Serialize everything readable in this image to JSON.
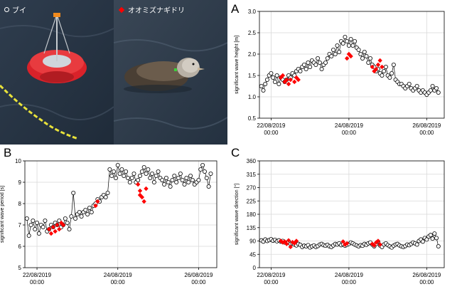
{
  "photos": {
    "buoy_label": "ブイ",
    "bird_label": "オオミズナギドリ",
    "colors": {
      "buoy_marker": "#ffffff",
      "bird_marker": "#ff0000"
    }
  },
  "panels": {
    "a": "A",
    "b": "B",
    "c": "C"
  },
  "chart_data": [
    {
      "type": "scatter",
      "panel": "A",
      "ylabel": "significant wave height [m]",
      "xlabel": "",
      "x_ticks": [
        "22/08/2019\n00:00",
        "24/08/2019\n00:00",
        "26/08/2019\n00:00"
      ],
      "x_tick_days": [
        0,
        2,
        4
      ],
      "xlim_days": [
        -0.3,
        4.45
      ],
      "ylim": [
        0.5,
        3.0
      ],
      "y_ticks": [
        "0.5",
        "1.0",
        "1.5",
        "2.0",
        "2.5",
        "3.0"
      ],
      "grid": true,
      "series": [
        {
          "name": "ブイ",
          "marker": "open-circle",
          "color": "#000000",
          "x": [
            -0.25,
            -0.2,
            -0.15,
            -0.1,
            -0.05,
            0,
            0.05,
            0.1,
            0.15,
            0.2,
            0.25,
            0.3,
            0.35,
            0.4,
            0.45,
            0.5,
            0.55,
            0.6,
            0.65,
            0.7,
            0.75,
            0.8,
            0.85,
            0.9,
            0.95,
            1,
            1.05,
            1.1,
            1.15,
            1.2,
            1.25,
            1.3,
            1.35,
            1.4,
            1.45,
            1.5,
            1.55,
            1.6,
            1.65,
            1.7,
            1.75,
            1.8,
            1.85,
            1.9,
            1.95,
            2,
            2.05,
            2.1,
            2.15,
            2.2,
            2.25,
            2.3,
            2.35,
            2.4,
            2.45,
            2.5,
            2.55,
            2.6,
            2.65,
            2.7,
            2.75,
            2.8,
            2.85,
            2.9,
            2.95,
            3,
            3.05,
            3.1,
            3.15,
            3.2,
            3.25,
            3.3,
            3.35,
            3.4,
            3.45,
            3.5,
            3.55,
            3.6,
            3.65,
            3.7,
            3.75,
            3.8,
            3.85,
            3.9,
            3.95,
            4,
            4.05,
            4.1,
            4.15,
            4.2,
            4.25,
            4.3
          ],
          "y": [
            1.25,
            1.15,
            1.3,
            1.4,
            1.5,
            1.55,
            1.45,
            1.35,
            1.5,
            1.3,
            1.45,
            1.4,
            1.35,
            1.4,
            1.5,
            1.45,
            1.55,
            1.5,
            1.6,
            1.65,
            1.6,
            1.7,
            1.75,
            1.65,
            1.8,
            1.7,
            1.85,
            1.8,
            1.75,
            1.9,
            1.8,
            1.65,
            1.75,
            1.8,
            1.9,
            2.0,
            1.95,
            2.1,
            2.0,
            2.2,
            2.05,
            2.3,
            2.25,
            2.4,
            2.3,
            2.2,
            2.35,
            2.2,
            2.3,
            2.15,
            2.1,
            2.0,
            1.9,
            2.05,
            1.95,
            1.8,
            1.9,
            1.75,
            1.7,
            1.6,
            1.65,
            1.55,
            1.5,
            1.6,
            1.7,
            1.5,
            1.45,
            1.55,
            1.75,
            1.4,
            1.35,
            1.3,
            1.3,
            1.25,
            1.2,
            1.25,
            1.3,
            1.2,
            1.15,
            1.2,
            1.25,
            1.15,
            1.1,
            1.15,
            1.1,
            1.05,
            1.1,
            1.15,
            1.25,
            1.15,
            1.2,
            1.1
          ]
        },
        {
          "name": "オオミズナギドリ",
          "marker": "diamond",
          "color": "#ff0000",
          "x": [
            0.25,
            0.3,
            0.35,
            0.4,
            0.45,
            0.5,
            0.6,
            0.65,
            0.7,
            1.95,
            2.0,
            2.05,
            2.6,
            2.65,
            2.7,
            2.75,
            2.8,
            2.85
          ],
          "y": [
            1.45,
            1.5,
            1.35,
            1.4,
            1.3,
            1.4,
            1.35,
            1.45,
            1.4,
            1.9,
            2.0,
            1.95,
            1.7,
            1.6,
            1.65,
            1.75,
            1.85,
            1.7
          ]
        }
      ]
    },
    {
      "type": "scatter",
      "panel": "B",
      "ylabel": "significant wave period [s]",
      "xlabel": "",
      "x_ticks": [
        "22/08/2019\n00:00",
        "24/08/2019\n00:00",
        "26/08/2019\n00:00"
      ],
      "x_tick_days": [
        0,
        2,
        4
      ],
      "xlim_days": [
        -0.3,
        4.45
      ],
      "ylim": [
        5,
        10
      ],
      "y_ticks": [
        "5",
        "6",
        "7",
        "8",
        "9",
        "10"
      ],
      "grid": true,
      "series": [
        {
          "name": "ブイ",
          "marker": "open-circle",
          "color": "#000000",
          "x": [
            -0.25,
            -0.2,
            -0.15,
            -0.1,
            -0.05,
            0,
            0.05,
            0.1,
            0.15,
            0.2,
            0.25,
            0.3,
            0.35,
            0.4,
            0.45,
            0.5,
            0.55,
            0.6,
            0.65,
            0.7,
            0.75,
            0.8,
            0.85,
            0.9,
            0.95,
            1,
            1.05,
            1.1,
            1.15,
            1.2,
            1.25,
            1.3,
            1.35,
            1.4,
            1.45,
            1.5,
            1.55,
            1.6,
            1.65,
            1.7,
            1.75,
            1.8,
            1.85,
            1.9,
            1.95,
            2,
            2.05,
            2.1,
            2.15,
            2.2,
            2.25,
            2.3,
            2.35,
            2.4,
            2.45,
            2.5,
            2.55,
            2.6,
            2.65,
            2.7,
            2.75,
            2.8,
            2.85,
            2.9,
            2.95,
            3,
            3.05,
            3.1,
            3.15,
            3.2,
            3.25,
            3.3,
            3.35,
            3.4,
            3.45,
            3.5,
            3.55,
            3.6,
            3.65,
            3.7,
            3.75,
            3.8,
            3.85,
            3.9,
            3.95,
            4,
            4.05,
            4.1,
            4.15,
            4.2,
            4.25,
            4.3
          ],
          "y": [
            7.3,
            6.5,
            7.0,
            7.2,
            6.8,
            7.1,
            6.6,
            7.0,
            6.9,
            7.2,
            6.7,
            6.8,
            7.0,
            6.9,
            7.1,
            7.0,
            7.2,
            6.9,
            7.0,
            7.3,
            7.1,
            6.8,
            7.4,
            8.5,
            7.3,
            7.5,
            7.6,
            7.4,
            7.6,
            7.7,
            7.5,
            7.8,
            7.6,
            7.9,
            8.0,
            8.2,
            8.1,
            8.3,
            8.4,
            8.3,
            8.5,
            9.6,
            9.3,
            9.5,
            9.2,
            9.8,
            9.4,
            9.6,
            9.3,
            9.5,
            9.2,
            9.0,
            9.2,
            9.4,
            9.0,
            9.1,
            9.3,
            9.5,
            9.7,
            9.4,
            9.6,
            9.2,
            9.4,
            9.0,
            9.3,
            9.5,
            9.2,
            9.1,
            8.9,
            9.2,
            9.0,
            8.8,
            9.1,
            9.3,
            9.0,
            9.2,
            9.4,
            9.1,
            8.9,
            9.2,
            9.0,
            9.3,
            9.1,
            8.9,
            9.0,
            9.1,
            9.6,
            9.8,
            9.5,
            9.2,
            8.8,
            9.4
          ]
        },
        {
          "name": "オオミズナギドリ",
          "marker": "diamond",
          "color": "#ff0000",
          "x": [
            0.3,
            0.35,
            0.4,
            0.45,
            0.5,
            0.55,
            0.6,
            0.65,
            1.45,
            1.5,
            2.5,
            2.55,
            2.6,
            2.65,
            2.7,
            2.55
          ],
          "y": [
            6.8,
            6.6,
            6.9,
            6.7,
            7.0,
            6.8,
            7.1,
            7.0,
            7.9,
            8.1,
            8.9,
            8.6,
            8.3,
            8.1,
            8.7,
            8.4
          ]
        }
      ]
    },
    {
      "type": "scatter",
      "panel": "C",
      "ylabel": "significant wave direction [°]",
      "xlabel": "",
      "x_ticks": [
        "22/08/2019\n00:00",
        "24/08/2019\n00:00",
        "26/08/2019\n00:00"
      ],
      "x_tick_days": [
        0,
        2,
        4
      ],
      "xlim_days": [
        -0.3,
        4.45
      ],
      "ylim": [
        0,
        360
      ],
      "y_ticks": [
        "0",
        "45",
        "90",
        "135",
        "180",
        "225",
        "270",
        "315",
        "360"
      ],
      "grid": true,
      "series": [
        {
          "name": "ブイ",
          "marker": "open-circle",
          "color": "#000000",
          "x": [
            -0.25,
            -0.2,
            -0.15,
            -0.1,
            -0.05,
            0,
            0.05,
            0.1,
            0.15,
            0.2,
            0.25,
            0.3,
            0.35,
            0.4,
            0.45,
            0.5,
            0.55,
            0.6,
            0.65,
            0.7,
            0.75,
            0.8,
            0.85,
            0.9,
            0.95,
            1,
            1.05,
            1.1,
            1.15,
            1.2,
            1.25,
            1.3,
            1.35,
            1.4,
            1.45,
            1.5,
            1.55,
            1.6,
            1.65,
            1.7,
            1.75,
            1.8,
            1.85,
            1.9,
            1.95,
            2,
            2.05,
            2.1,
            2.15,
            2.2,
            2.25,
            2.3,
            2.35,
            2.4,
            2.45,
            2.5,
            2.55,
            2.6,
            2.65,
            2.7,
            2.75,
            2.8,
            2.85,
            2.9,
            2.95,
            3,
            3.05,
            3.1,
            3.15,
            3.2,
            3.25,
            3.3,
            3.35,
            3.4,
            3.45,
            3.5,
            3.55,
            3.6,
            3.65,
            3.7,
            3.75,
            3.8,
            3.85,
            3.9,
            3.95,
            4,
            4.05,
            4.1,
            4.15,
            4.2,
            4.25,
            4.3
          ],
          "y": [
            92,
            88,
            95,
            90,
            93,
            96,
            91,
            94,
            89,
            92,
            88,
            90,
            85,
            83,
            87,
            80,
            82,
            78,
            75,
            80,
            77,
            70,
            74,
            72,
            76,
            68,
            72,
            75,
            70,
            73,
            78,
            80,
            76,
            74,
            77,
            72,
            70,
            75,
            80,
            78,
            82,
            76,
            79,
            74,
            77,
            80,
            85,
            82,
            78,
            75,
            72,
            76,
            74,
            80,
            77,
            82,
            85,
            78,
            72,
            80,
            88,
            75,
            70,
            78,
            82,
            76,
            72,
            68,
            74,
            78,
            80,
            75,
            72,
            70,
            73,
            78,
            76,
            80,
            85,
            82,
            78,
            90,
            95,
            88,
            100,
            95,
            105,
            110,
            98,
            115,
            100,
            72
          ]
        },
        {
          "name": "オオミズナギドリ",
          "marker": "diamond",
          "color": "#ff0000",
          "x": [
            0.25,
            0.3,
            0.35,
            0.4,
            0.45,
            0.5,
            0.55,
            0.6,
            0.65,
            1.85,
            1.9,
            1.95,
            2.6,
            2.65,
            2.7,
            2.75,
            2.8
          ],
          "y": [
            90,
            85,
            88,
            80,
            92,
            70,
            86,
            82,
            90,
            88,
            78,
            82,
            80,
            75,
            85,
            90,
            78
          ]
        }
      ]
    }
  ]
}
